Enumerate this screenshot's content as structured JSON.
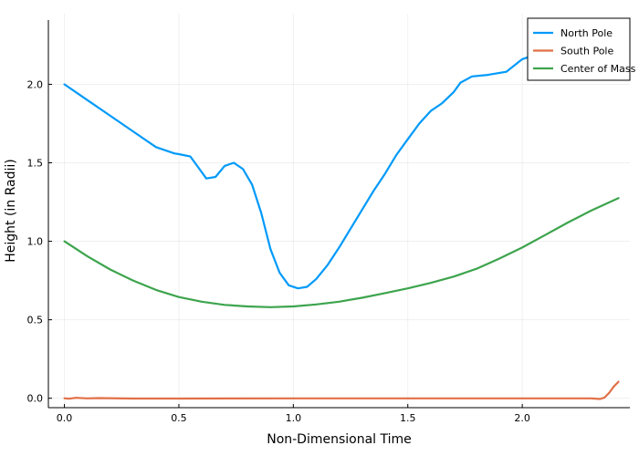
{
  "chart_data": {
    "type": "line",
    "xlabel": "Non-Dimensional Time",
    "ylabel": "Height (in Radii)",
    "xlim": [
      -0.07,
      2.47
    ],
    "ylim": [
      -0.06,
      2.45
    ],
    "xticks": [
      0.0,
      0.5,
      1.0,
      1.5,
      2.0
    ],
    "xtick_labels": [
      "0.0",
      "0.5",
      "1.0",
      "1.5",
      "2.0"
    ],
    "yticks": [
      0.0,
      0.5,
      1.0,
      1.5,
      2.0
    ],
    "ytick_labels": [
      "0.0",
      "0.5",
      "1.0",
      "1.5",
      "2.0"
    ],
    "grid": true,
    "legend_position": "top-right",
    "series": [
      {
        "name": "North Pole",
        "color": "#009af9",
        "points": [
          [
            0.0,
            2.0
          ],
          [
            0.1,
            1.9
          ],
          [
            0.2,
            1.8
          ],
          [
            0.3,
            1.7
          ],
          [
            0.4,
            1.6
          ],
          [
            0.48,
            1.56
          ],
          [
            0.5,
            1.555
          ],
          [
            0.55,
            1.54
          ],
          [
            0.58,
            1.48
          ],
          [
            0.62,
            1.4
          ],
          [
            0.66,
            1.41
          ],
          [
            0.7,
            1.48
          ],
          [
            0.74,
            1.5
          ],
          [
            0.78,
            1.46
          ],
          [
            0.82,
            1.36
          ],
          [
            0.86,
            1.18
          ],
          [
            0.9,
            0.95
          ],
          [
            0.94,
            0.8
          ],
          [
            0.98,
            0.72
          ],
          [
            1.02,
            0.7
          ],
          [
            1.06,
            0.71
          ],
          [
            1.1,
            0.76
          ],
          [
            1.15,
            0.85
          ],
          [
            1.2,
            0.96
          ],
          [
            1.25,
            1.08
          ],
          [
            1.3,
            1.2
          ],
          [
            1.35,
            1.32
          ],
          [
            1.4,
            1.43
          ],
          [
            1.45,
            1.55
          ],
          [
            1.5,
            1.65
          ],
          [
            1.55,
            1.75
          ],
          [
            1.6,
            1.83
          ],
          [
            1.65,
            1.88
          ],
          [
            1.7,
            1.95
          ],
          [
            1.73,
            2.01
          ],
          [
            1.78,
            2.05
          ],
          [
            1.85,
            2.06
          ],
          [
            1.93,
            2.08
          ],
          [
            2.0,
            2.16
          ],
          [
            2.02,
            2.17
          ],
          [
            2.05,
            2.18
          ]
        ]
      },
      {
        "name": "South Pole",
        "color": "#e26f46",
        "points": [
          [
            0.0,
            0.0
          ],
          [
            0.02,
            -0.003
          ],
          [
            0.05,
            0.003
          ],
          [
            0.1,
            -0.001
          ],
          [
            0.15,
            0.001
          ],
          [
            0.3,
            -0.002
          ],
          [
            0.5,
            -0.002
          ],
          [
            1.0,
            -0.001
          ],
          [
            1.5,
            -0.001
          ],
          [
            2.0,
            -0.001
          ],
          [
            2.3,
            -0.001
          ],
          [
            2.34,
            -0.005
          ],
          [
            2.36,
            0.005
          ],
          [
            2.38,
            0.035
          ],
          [
            2.4,
            0.075
          ],
          [
            2.42,
            0.105
          ]
        ]
      },
      {
        "name": "Center of Mass",
        "color": "#3da44d",
        "points": [
          [
            0.0,
            1.0
          ],
          [
            0.1,
            0.905
          ],
          [
            0.2,
            0.82
          ],
          [
            0.3,
            0.75
          ],
          [
            0.4,
            0.69
          ],
          [
            0.5,
            0.645
          ],
          [
            0.6,
            0.615
          ],
          [
            0.7,
            0.595
          ],
          [
            0.8,
            0.585
          ],
          [
            0.9,
            0.58
          ],
          [
            1.0,
            0.585
          ],
          [
            1.1,
            0.598
          ],
          [
            1.2,
            0.615
          ],
          [
            1.3,
            0.64
          ],
          [
            1.4,
            0.67
          ],
          [
            1.5,
            0.7
          ],
          [
            1.6,
            0.735
          ],
          [
            1.7,
            0.775
          ],
          [
            1.8,
            0.825
          ],
          [
            1.9,
            0.89
          ],
          [
            2.0,
            0.96
          ],
          [
            2.1,
            1.04
          ],
          [
            2.2,
            1.12
          ],
          [
            2.3,
            1.195
          ],
          [
            2.42,
            1.275
          ]
        ]
      }
    ]
  }
}
